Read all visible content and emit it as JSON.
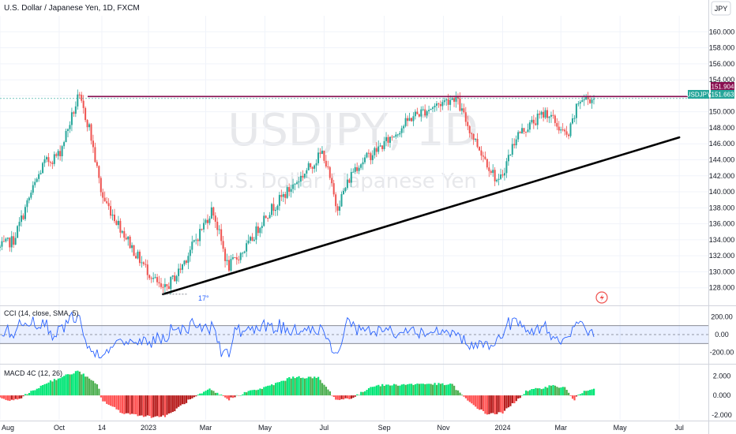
{
  "header": {
    "title": "U.S. Dollar / Japanese Yen, 1D, FXCM",
    "currency": "JPY"
  },
  "watermark": {
    "symbol": "USDJPY, 1D",
    "name": "U.S. Dollar / Japanese Yen"
  },
  "price_badges": {
    "resistance_value": "151.904",
    "symbol": "USDJPY",
    "last_value": "151.663"
  },
  "annotation": {
    "angle_label": "17°"
  },
  "indicators": {
    "cci_label": "CCI (14, close, SMA, 5)",
    "macd_label": "MACD 4C (12, 26)"
  },
  "colors": {
    "up": "#26a69a",
    "down": "#ef5350",
    "resistance": "#880e4f",
    "trendline": "#000000",
    "cci": "#2962ff",
    "macd_up": "#00e676",
    "macd_up_dark": "#4caf50",
    "macd_down": "#ff5252",
    "macd_down_dark": "#b71c1c"
  },
  "chart_data": [
    {
      "type": "candlestick",
      "ylim": [
        126,
        162
      ],
      "yticks": [
        128,
        130,
        132,
        134,
        136,
        138,
        140,
        142,
        144,
        146,
        148,
        150,
        152,
        154,
        156,
        158,
        160
      ],
      "ytick_labels": [
        "128.000",
        "130.000",
        "132.000",
        "134.000",
        "136.000",
        "138.000",
        "140.000",
        "142.000",
        "144.000",
        "146.000",
        "148.000",
        "150.000",
        "152.000",
        "154.000",
        "156.000",
        "158.000",
        "160.000"
      ],
      "xlim": [
        "2022-08-01",
        "2024-07-31"
      ],
      "xticks": [
        "2022-08-01",
        "2022-10-01",
        "2022-11-14",
        "2023-01-01",
        "2023-03-01",
        "2023-05-01",
        "2023-07-01",
        "2023-09-01",
        "2023-11-01",
        "2024-01-01",
        "2024-03-01",
        "2024-05-01",
        "2024-07-01"
      ],
      "xtick_labels": [
        "Aug",
        "Oct",
        "14",
        "2023",
        "Mar",
        "May",
        "Jul",
        "Sep",
        "Nov",
        "2024",
        "Mar",
        "May",
        "Jul"
      ],
      "price_path": [
        [
          "2022-08-01",
          133.0
        ],
        [
          "2022-08-15",
          134.0
        ],
        [
          "2022-09-01",
          139.5
        ],
        [
          "2022-09-15",
          143.5
        ],
        [
          "2022-10-01",
          144.7
        ],
        [
          "2022-10-21",
          151.9
        ],
        [
          "2022-11-01",
          148.0
        ],
        [
          "2022-11-14",
          139.5
        ],
        [
          "2022-12-01",
          136.0
        ],
        [
          "2022-12-20",
          132.0
        ],
        [
          "2023-01-16",
          127.5
        ],
        [
          "2023-02-01",
          130.0
        ],
        [
          "2023-03-08",
          137.9
        ],
        [
          "2023-03-24",
          130.5
        ],
        [
          "2023-04-15",
          133.5
        ],
        [
          "2023-05-01",
          137.0
        ],
        [
          "2023-05-31",
          140.9
        ],
        [
          "2023-06-30",
          145.0
        ],
        [
          "2023-07-14",
          138.0
        ],
        [
          "2023-08-01",
          143.0
        ],
        [
          "2023-09-01",
          146.0
        ],
        [
          "2023-10-01",
          149.5
        ],
        [
          "2023-11-13",
          151.9
        ],
        [
          "2023-12-01",
          147.0
        ],
        [
          "2023-12-28",
          141.0
        ],
        [
          "2024-01-15",
          147.0
        ],
        [
          "2024-02-15",
          150.0
        ],
        [
          "2024-03-08",
          146.7
        ],
        [
          "2024-03-20",
          151.5
        ],
        [
          "2024-04-05",
          151.7
        ]
      ],
      "resistance": 151.904,
      "last": 151.663,
      "trendline": [
        [
          "2023-01-16",
          127.2
        ],
        [
          "2024-07-01",
          146.8
        ]
      ]
    },
    {
      "type": "line",
      "name": "CCI",
      "ylim": [
        -300,
        300
      ],
      "yticks": [
        200,
        0,
        -200
      ],
      "ytick_labels": [
        "200.00",
        "0.00",
        "-200.00"
      ],
      "band": [
        100,
        -100
      ],
      "last": 75
    },
    {
      "type": "bar",
      "name": "MACD",
      "ylim": [
        -2.5,
        3.0
      ],
      "yticks": [
        2,
        0,
        -2
      ],
      "ytick_labels": [
        "2.000",
        "0.000",
        "-2.000"
      ],
      "histogram_path": [
        [
          "2022-08-01",
          -0.3
        ],
        [
          "2022-08-15",
          -0.6
        ],
        [
          "2022-09-01",
          0.3
        ],
        [
          "2022-09-20",
          1.4
        ],
        [
          "2022-10-21",
          2.5
        ],
        [
          "2022-11-10",
          1.0
        ],
        [
          "2022-11-14",
          -0.5
        ],
        [
          "2022-12-05",
          -1.8
        ],
        [
          "2023-01-05",
          -2.2
        ],
        [
          "2023-01-20",
          -2.1
        ],
        [
          "2023-02-10",
          -0.6
        ],
        [
          "2023-03-05",
          0.6
        ],
        [
          "2023-03-25",
          -0.4
        ],
        [
          "2023-04-10",
          0.3
        ],
        [
          "2023-05-01",
          0.8
        ],
        [
          "2023-05-30",
          1.9
        ],
        [
          "2023-06-25",
          1.8
        ],
        [
          "2023-07-14",
          -0.5
        ],
        [
          "2023-08-01",
          -0.2
        ],
        [
          "2023-08-20",
          1.0
        ],
        [
          "2023-09-15",
          1.1
        ],
        [
          "2023-10-15",
          1.2
        ],
        [
          "2023-11-10",
          1.1
        ],
        [
          "2023-11-25",
          -0.5
        ],
        [
          "2023-12-15",
          -1.9
        ],
        [
          "2024-01-01",
          -1.8
        ],
        [
          "2024-01-25",
          0.4
        ],
        [
          "2024-02-20",
          1.0
        ],
        [
          "2024-03-05",
          0.8
        ],
        [
          "2024-03-14",
          -0.5
        ],
        [
          "2024-03-25",
          0.5
        ],
        [
          "2024-04-05",
          0.8
        ]
      ]
    }
  ]
}
